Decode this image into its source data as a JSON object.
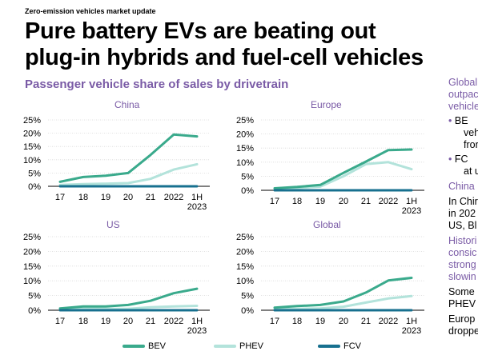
{
  "header": {
    "kicker": "Zero-emission vehicles market update",
    "title_line1": "Pure battery EVs are beating out",
    "title_line2": "plug-in hybrids and fuel-cell vehicles",
    "subtitle": "Passenger vehicle share of sales by drivetrain"
  },
  "colors": {
    "BEV": "#3aaa8c",
    "PHEV": "#b3e3db",
    "FCV": "#17708f",
    "grid": "#d9d9d9",
    "subtitle": "#7a5ba6"
  },
  "sidebar": {
    "lines": [
      {
        "text": "Global",
        "style": "purple"
      },
      {
        "text": "outpac",
        "style": "purple"
      },
      {
        "text": "vehicle",
        "style": "purple"
      },
      {
        "text": "• BE",
        "style": "bullet"
      },
      {
        "text": "vehi",
        "style": "indent"
      },
      {
        "text": "fror",
        "style": "indent"
      },
      {
        "text": "• FC",
        "style": "bullet"
      },
      {
        "text": "at u",
        "style": "indent"
      },
      {
        "text": "China",
        "style": "purple"
      },
      {
        "text": "In Chir",
        "style": "plain"
      },
      {
        "text": "in 202",
        "style": "plain"
      },
      {
        "text": "US, Bl",
        "style": "plain"
      },
      {
        "text": "Histori",
        "style": "purple"
      },
      {
        "text": "consic",
        "style": "purple"
      },
      {
        "text": "strong",
        "style": "purple"
      },
      {
        "text": "slowin",
        "style": "purple"
      },
      {
        "text": "Some",
        "style": "plain"
      },
      {
        "text": "PHEV",
        "style": "plain"
      },
      {
        "text": "Europ",
        "style": "plain"
      },
      {
        "text": "droppe",
        "style": "plain"
      }
    ]
  },
  "legend": [
    {
      "key": "BEV",
      "label": "BEV"
    },
    {
      "key": "PHEV",
      "label": "PHEV"
    },
    {
      "key": "FCV",
      "label": "FCV"
    }
  ],
  "chart_data": [
    {
      "type": "line",
      "title": "China",
      "x": [
        "17",
        "18",
        "19",
        "20",
        "21",
        "2022",
        "1H 2023"
      ],
      "ylim": [
        0,
        25
      ],
      "yticks": [
        "0%",
        "5%",
        "10%",
        "15%",
        "20%",
        "25%"
      ],
      "series": [
        {
          "name": "BEV",
          "values": [
            1.7,
            3.5,
            4.0,
            5.0,
            11.8,
            19.5,
            18.8
          ]
        },
        {
          "name": "PHEV",
          "values": [
            0.5,
            0.8,
            1.0,
            1.2,
            2.8,
            6.3,
            8.3
          ]
        },
        {
          "name": "FCV",
          "values": [
            0,
            0,
            0,
            0,
            0,
            0,
            0
          ]
        }
      ]
    },
    {
      "type": "line",
      "title": "Europe",
      "x": [
        "17",
        "18",
        "19",
        "20",
        "21",
        "2022",
        "1H 2023"
      ],
      "ylim": [
        0,
        25
      ],
      "yticks": [
        "0%",
        "5%",
        "10%",
        "15%",
        "20%",
        "25%"
      ],
      "series": [
        {
          "name": "BEV",
          "values": [
            0.7,
            1.2,
            1.9,
            6.2,
            10.2,
            14.3,
            14.5
          ]
        },
        {
          "name": "PHEV",
          "values": [
            0.6,
            0.8,
            1.3,
            5.0,
            9.3,
            10.0,
            7.5
          ]
        },
        {
          "name": "FCV",
          "values": [
            0,
            0,
            0,
            0,
            0,
            0,
            0
          ]
        }
      ]
    },
    {
      "type": "line",
      "title": "US",
      "x": [
        "17",
        "18",
        "19",
        "20",
        "21",
        "2022",
        "1H 2023"
      ],
      "ylim": [
        0,
        25
      ],
      "yticks": [
        "0%",
        "5%",
        "10%",
        "15%",
        "20%",
        "25%"
      ],
      "series": [
        {
          "name": "BEV",
          "values": [
            0.6,
            1.3,
            1.3,
            1.8,
            3.2,
            5.8,
            7.3
          ]
        },
        {
          "name": "PHEV",
          "values": [
            0.4,
            0.6,
            0.5,
            0.5,
            1.0,
            1.3,
            1.5
          ]
        },
        {
          "name": "FCV",
          "values": [
            0,
            0,
            0,
            0,
            0,
            0,
            0
          ]
        }
      ]
    },
    {
      "type": "line",
      "title": "Global",
      "x": [
        "17",
        "18",
        "19",
        "20",
        "21",
        "2022",
        "1H 2023"
      ],
      "ylim": [
        0,
        25
      ],
      "yticks": [
        "0%",
        "5%",
        "10%",
        "15%",
        "20%",
        "25%"
      ],
      "series": [
        {
          "name": "BEV",
          "values": [
            0.9,
            1.4,
            1.8,
            3.0,
            6.0,
            10.1,
            11.0
          ]
        },
        {
          "name": "PHEV",
          "values": [
            0.4,
            0.5,
            0.6,
            1.2,
            2.6,
            4.0,
            4.8
          ]
        },
        {
          "name": "FCV",
          "values": [
            0,
            0,
            0,
            0,
            0,
            0,
            0
          ]
        }
      ]
    }
  ]
}
